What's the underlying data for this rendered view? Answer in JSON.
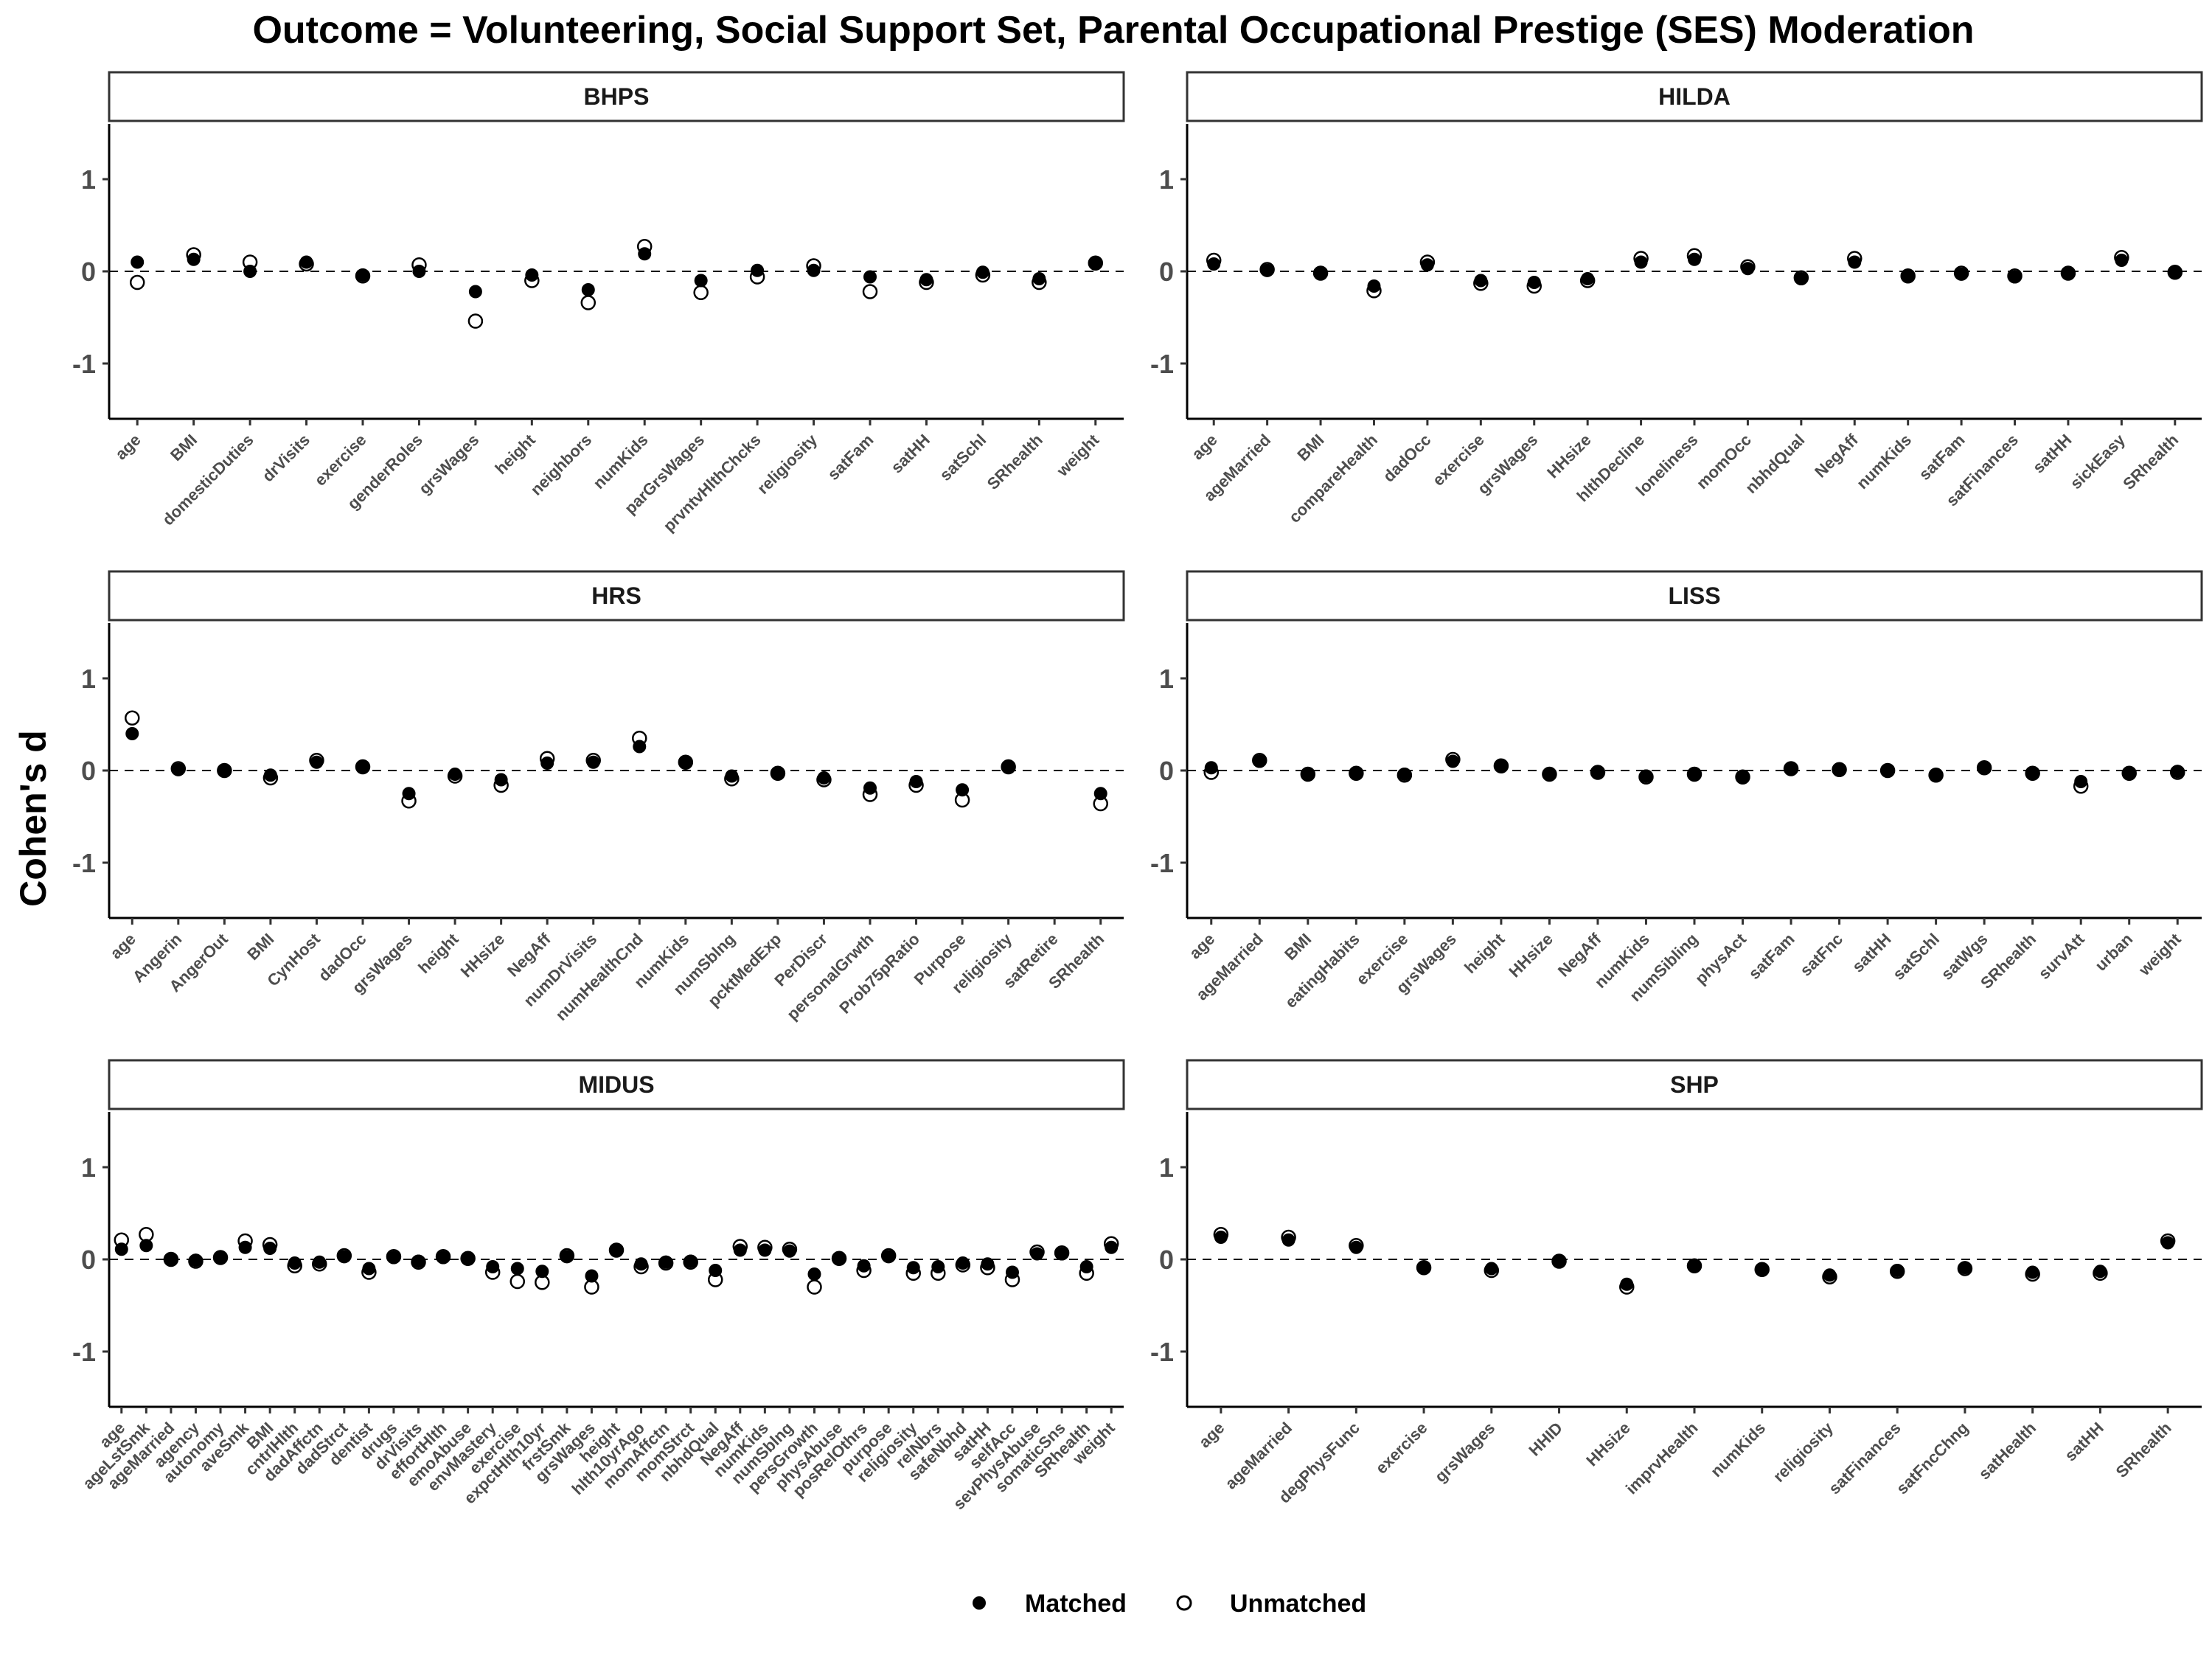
{
  "title": "Outcome = Volunteering, Social Support Set, Parental Occupational Prestige (SES) Moderation",
  "ylabel": "Cohen's d",
  "legend": {
    "matched": "Matched",
    "unmatched": "Unmatched",
    "position": "bottom"
  },
  "chart_data": {
    "type": "scatter",
    "facet_layout": "3 rows x 2 columns",
    "ylim": [
      -1.6,
      1.6
    ],
    "yticks": [
      -1,
      0,
      1
    ],
    "reference_line": 0,
    "grid": false,
    "panels": [
      {
        "name": "BHPS",
        "categories": [
          "age",
          "BMI",
          "domesticDuties",
          "drVisits",
          "exercise",
          "genderRoles",
          "grsWages",
          "height",
          "neighbors",
          "numKids",
          "parGrsWages",
          "prvntvHlthChcks",
          "religiosity",
          "satFam",
          "satHH",
          "satSchl",
          "SRhealth",
          "weight"
        ],
        "series": [
          {
            "name": "Matched",
            "values": [
              0.1,
              0.13,
              0.0,
              0.1,
              -0.04,
              0.0,
              -0.22,
              -0.04,
              -0.2,
              0.19,
              -0.1,
              0.01,
              0.01,
              -0.06,
              -0.09,
              -0.01,
              -0.08,
              0.09
            ]
          },
          {
            "name": "Unmatched",
            "values": [
              -0.12,
              0.18,
              0.1,
              0.08,
              -0.05,
              0.07,
              -0.54,
              -0.1,
              -0.34,
              0.27,
              -0.23,
              -0.06,
              0.06,
              -0.22,
              -0.12,
              -0.04,
              -0.12,
              0.09
            ]
          }
        ]
      },
      {
        "name": "HILDA",
        "categories": [
          "age",
          "ageMarried",
          "BMI",
          "compareHealth",
          "dadOcc",
          "exercise",
          "grsWages",
          "HHsize",
          "hlthDecline",
          "loneliness",
          "momOcc",
          "nbhdQual",
          "NegAff",
          "numKids",
          "satFam",
          "satFinances",
          "satHH",
          "sickEasy",
          "SRhealth"
        ],
        "series": [
          {
            "name": "Matched",
            "values": [
              0.08,
              0.01,
              -0.02,
              -0.16,
              0.07,
              -0.1,
              -0.12,
              -0.08,
              0.1,
              0.13,
              0.03,
              -0.08,
              0.1,
              -0.05,
              -0.03,
              -0.06,
              -0.02,
              0.12,
              -0.01
            ]
          },
          {
            "name": "Unmatched",
            "values": [
              0.12,
              0.02,
              -0.02,
              -0.21,
              0.1,
              -0.13,
              -0.16,
              -0.1,
              0.14,
              0.17,
              0.05,
              -0.07,
              0.14,
              -0.05,
              -0.02,
              -0.05,
              -0.02,
              0.15,
              -0.01
            ]
          }
        ]
      },
      {
        "name": "HRS",
        "categories": [
          "age",
          "Angerin",
          "AngerOut",
          "BMI",
          "CynHost",
          "dadOcc",
          "grsWages",
          "height",
          "HHsize",
          "NegAff",
          "numDrVisits",
          "numHealthCnd",
          "numKids",
          "numSblng",
          "pcktMedExp",
          "PerDiscr",
          "personalGrwth",
          "Prob75pRatio",
          "Purpose",
          "religiosity",
          "satRetire",
          "SRhealth"
        ],
        "series": [
          {
            "name": "Matched",
            "values": [
              0.4,
              0.01,
              0.0,
              -0.05,
              0.09,
              0.04,
              -0.25,
              -0.04,
              -0.1,
              0.08,
              0.09,
              0.26,
              0.09,
              -0.06,
              -0.03,
              -0.08,
              -0.19,
              -0.12,
              -0.21,
              0.04,
              null,
              -0.25
            ]
          },
          {
            "name": "Unmatched",
            "values": [
              0.57,
              0.02,
              0.0,
              -0.08,
              0.11,
              0.04,
              -0.33,
              -0.06,
              -0.16,
              0.13,
              0.11,
              0.35,
              0.09,
              -0.09,
              -0.03,
              -0.1,
              -0.26,
              -0.16,
              -0.32,
              0.04,
              null,
              -0.36
            ]
          }
        ]
      },
      {
        "name": "LISS",
        "categories": [
          "age",
          "ageMarried",
          "BMI",
          "eatingHabits",
          "exercise",
          "grsWages",
          "height",
          "HHsize",
          "NegAff",
          "numKids",
          "numSibling",
          "physAct",
          "satFam",
          "satFnc",
          "satHH",
          "satSchl",
          "satWgs",
          "SRhealth",
          "survAtt",
          "urban",
          "weight"
        ],
        "series": [
          {
            "name": "Matched",
            "values": [
              0.03,
              0.1,
              -0.04,
              -0.03,
              -0.04,
              0.1,
              0.05,
              -0.04,
              -0.02,
              -0.06,
              -0.04,
              -0.07,
              0.02,
              0.01,
              0.0,
              -0.05,
              0.03,
              -0.03,
              -0.12,
              -0.03,
              -0.01
            ]
          },
          {
            "name": "Unmatched",
            "values": [
              -0.02,
              0.11,
              -0.04,
              -0.03,
              -0.05,
              0.12,
              0.05,
              -0.04,
              -0.02,
              -0.07,
              -0.04,
              -0.07,
              0.02,
              0.01,
              0.0,
              -0.05,
              0.03,
              -0.03,
              -0.17,
              -0.03,
              -0.02
            ]
          }
        ]
      },
      {
        "name": "MIDUS",
        "categories": [
          "age",
          "ageLstSmk",
          "ageMarried",
          "agency",
          "autonomy",
          "aveSmk",
          "BMI",
          "cntrlHlth",
          "dadAffctn",
          "dadStrct",
          "dentist",
          "drugs",
          "drVisits",
          "effortHlth",
          "emoAbuse",
          "envMastery",
          "exercise",
          "expctHlth10yr",
          "frstSmk",
          "grsWages",
          "height",
          "hlth10yrAgo",
          "momAffctn",
          "momStrct",
          "nbhdQual",
          "NegAff",
          "numKids",
          "numSblng",
          "persGrowth",
          "physAbuse",
          "posRelOthrs",
          "purpose",
          "religiosity",
          "relNbrs",
          "safeNbhd",
          "satHH",
          "selfAcc",
          "sevPhysAbuse",
          "somaticSns",
          "SRhealth",
          "weight"
        ],
        "series": [
          {
            "name": "Matched",
            "values": [
              0.11,
              0.15,
              0.0,
              -0.01,
              0.02,
              0.13,
              0.12,
              -0.04,
              -0.03,
              0.03,
              -0.1,
              0.02,
              -0.02,
              0.02,
              0.01,
              -0.08,
              -0.1,
              -0.13,
              0.03,
              -0.18,
              0.1,
              -0.05,
              -0.03,
              -0.02,
              -0.12,
              0.1,
              0.1,
              0.09,
              -0.16,
              0.01,
              -0.07,
              0.03,
              -0.09,
              -0.08,
              -0.04,
              -0.05,
              -0.14,
              0.06,
              0.06,
              -0.08,
              0.13
            ]
          },
          {
            "name": "Unmatched",
            "values": [
              0.21,
              0.27,
              0.0,
              -0.02,
              0.02,
              0.2,
              0.16,
              -0.07,
              -0.05,
              0.04,
              -0.14,
              0.03,
              -0.03,
              0.03,
              0.01,
              -0.14,
              -0.24,
              -0.25,
              0.04,
              -0.3,
              0.1,
              -0.08,
              -0.04,
              -0.03,
              -0.22,
              0.14,
              0.13,
              0.11,
              -0.3,
              0.01,
              -0.12,
              0.04,
              -0.15,
              -0.15,
              -0.06,
              -0.09,
              -0.22,
              0.08,
              0.07,
              -0.15,
              0.17
            ]
          }
        ]
      },
      {
        "name": "SHP",
        "categories": [
          "age",
          "ageMarried",
          "degPhysFunc",
          "exercise",
          "grsWages",
          "HHID",
          "HHsize",
          "imprvHealth",
          "numKids",
          "religiosity",
          "satFinances",
          "satFncChng",
          "satHealth",
          "satHH",
          "SRhealth"
        ],
        "series": [
          {
            "name": "Matched",
            "values": [
              0.24,
              0.21,
              0.13,
              -0.09,
              -0.1,
              -0.02,
              -0.27,
              -0.07,
              -0.11,
              -0.17,
              -0.12,
              -0.09,
              -0.14,
              -0.13,
              0.18
            ]
          },
          {
            "name": "Unmatched",
            "values": [
              0.27,
              0.24,
              0.15,
              -0.09,
              -0.12,
              -0.02,
              -0.3,
              -0.07,
              -0.11,
              -0.19,
              -0.13,
              -0.1,
              -0.16,
              -0.15,
              0.2
            ]
          }
        ]
      }
    ]
  }
}
